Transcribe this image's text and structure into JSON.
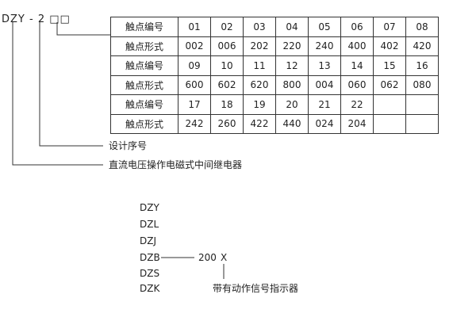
{
  "model_code": {
    "prefix": "DZY - 2",
    "boxes": "□□"
  },
  "contact_table": {
    "rows": [
      {
        "label": "触点编号",
        "cells": [
          "01",
          "02",
          "03",
          "04",
          "05",
          "06",
          "07",
          "08"
        ]
      },
      {
        "label": "触点形式",
        "cells": [
          "002",
          "006",
          "202",
          "220",
          "240",
          "400",
          "402",
          "420"
        ]
      },
      {
        "label": "触点编号",
        "cells": [
          "09",
          "10",
          "11",
          "12",
          "13",
          "14",
          "15",
          "16"
        ]
      },
      {
        "label": "触点形式",
        "cells": [
          "600",
          "602",
          "620",
          "800",
          "004",
          "060",
          "062",
          "080"
        ]
      },
      {
        "label": "触点编号",
        "cells": [
          "17",
          "18",
          "19",
          "20",
          "21",
          "22",
          "",
          ""
        ]
      },
      {
        "label": "触点形式",
        "cells": [
          "242",
          "260",
          "422",
          "440",
          "024",
          "204",
          "",
          ""
        ]
      }
    ]
  },
  "annotations": {
    "design_number": "设计序号",
    "relay_type": "直流电压操作电磁式中间继电器"
  },
  "series": {
    "models": [
      "DZY",
      "DZL",
      "DZJ",
      "DZB",
      "DZS",
      "DZK"
    ],
    "suffix": "200",
    "suffix_x": "X",
    "indicator_note": "带有动作信号指示器"
  }
}
